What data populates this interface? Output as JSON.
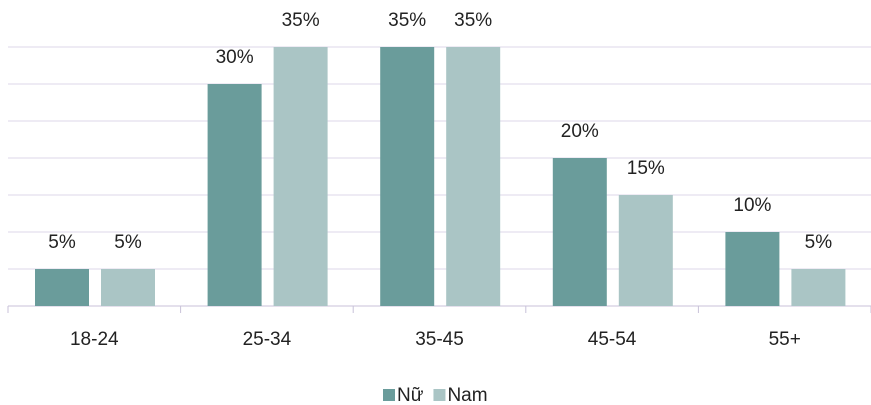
{
  "chart_data": {
    "type": "bar",
    "categories": [
      "18-24",
      "25-34",
      "35-45",
      "45-54",
      "55+"
    ],
    "series": [
      {
        "name": "Nữ",
        "color": "#6a9c9b",
        "values": [
          5,
          30,
          35,
          20,
          10
        ],
        "value_labels": [
          "5%",
          "30%",
          "35%",
          "20%",
          "10%"
        ]
      },
      {
        "name": "Nam",
        "color": "#aac5c5",
        "values": [
          5,
          35,
          35,
          15,
          5
        ],
        "value_labels": [
          "5%",
          "35%",
          "35%",
          "15%",
          "5%"
        ]
      }
    ],
    "ylim": [
      0,
      35
    ],
    "yticks": [
      0,
      5,
      10,
      15,
      20,
      25,
      30,
      35
    ],
    "grid": true,
    "legend": "bottom"
  }
}
